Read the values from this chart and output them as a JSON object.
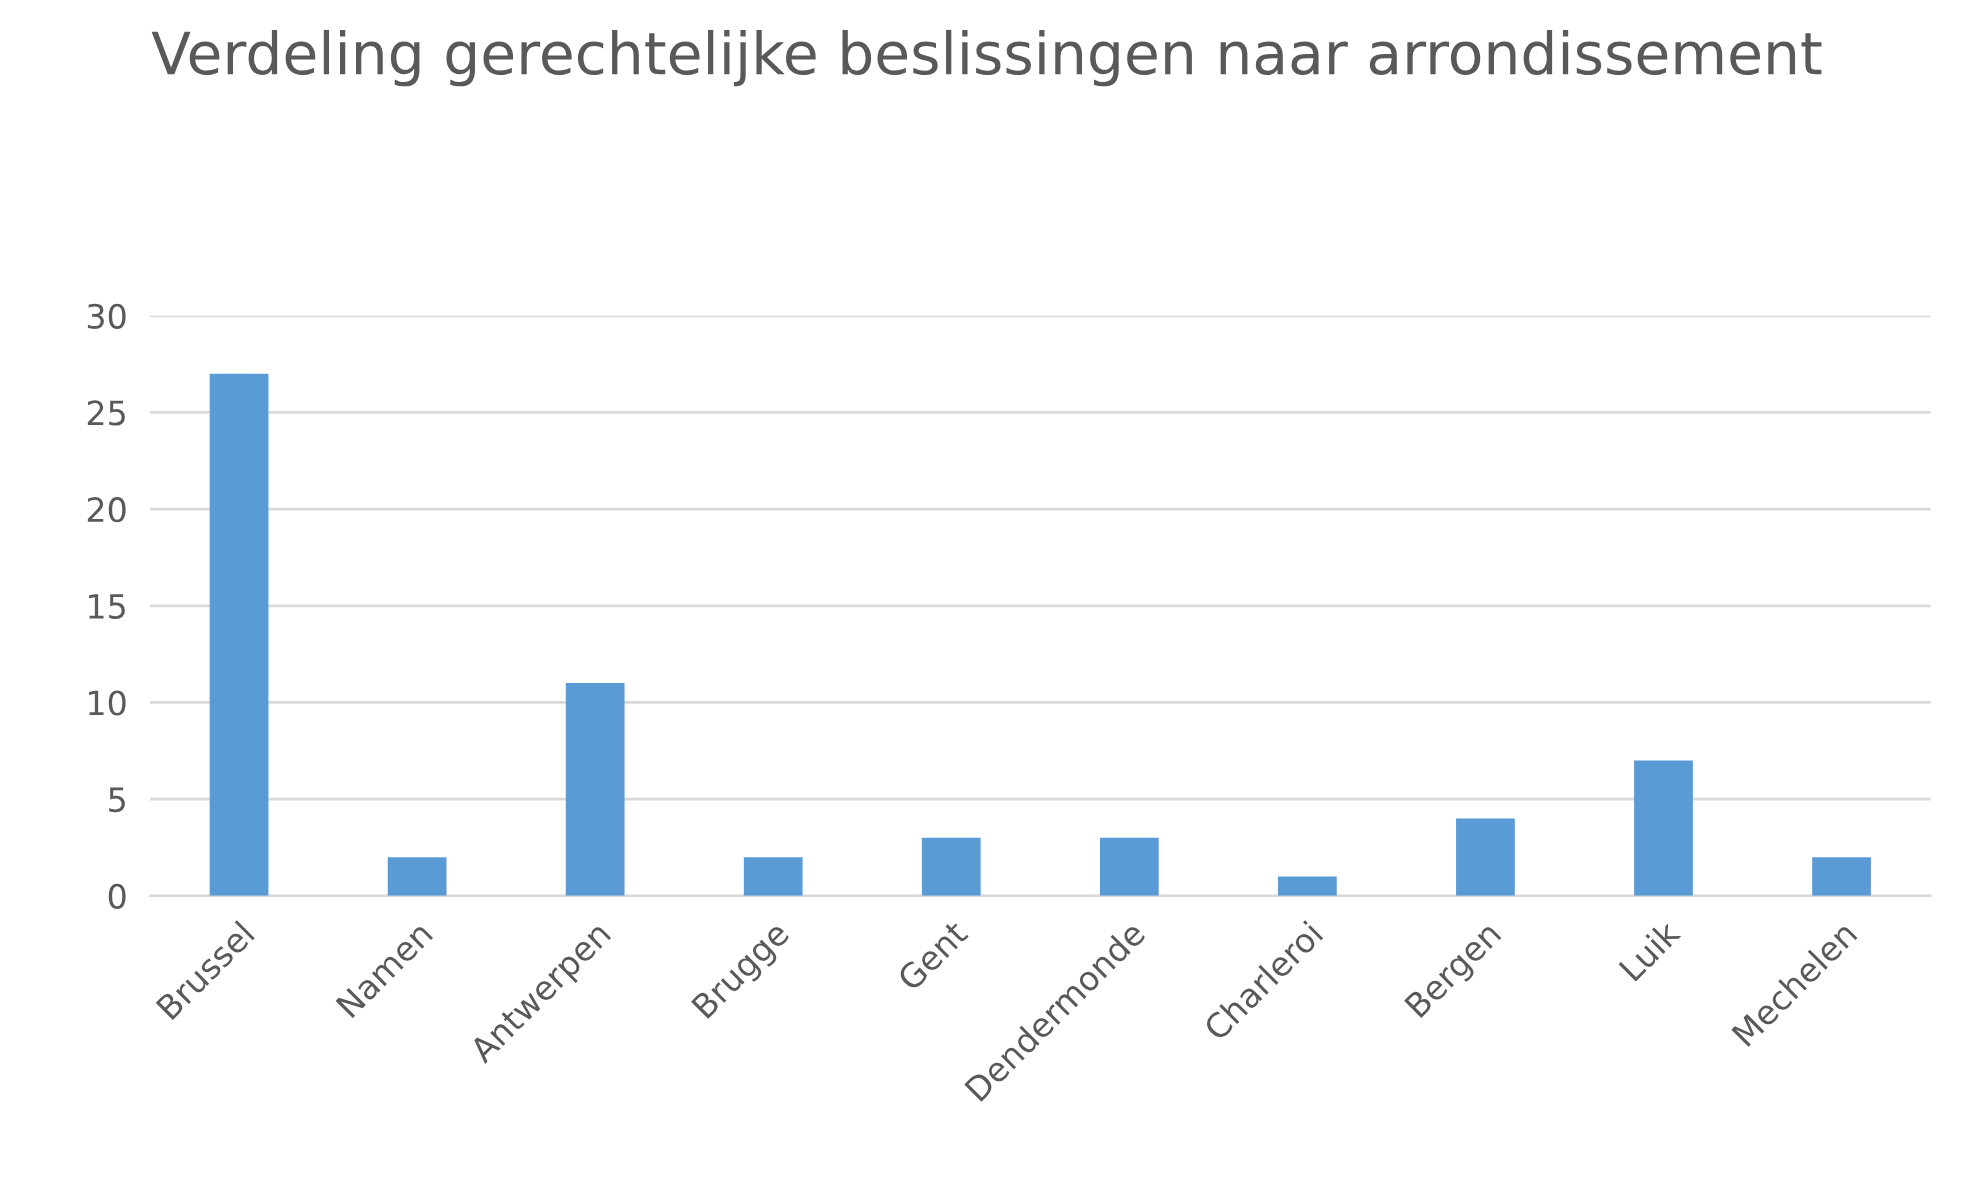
{
  "chart_data": {
    "type": "bar",
    "title": "Verdeling gerechtelijke beslissingen naar arrondissement",
    "categories": [
      "Brussel",
      "Namen",
      "Antwerpen",
      "Brugge",
      "Gent",
      "Dendermonde",
      "Charleroi",
      "Bergen",
      "Luik",
      "Mechelen"
    ],
    "values": [
      27,
      2,
      11,
      2,
      3,
      3,
      1,
      4,
      7,
      2
    ],
    "color": "#5b9bd5",
    "ylim": [
      0,
      30
    ],
    "yticks": [
      0,
      5,
      10,
      15,
      20,
      25,
      30
    ],
    "grid": "y"
  }
}
